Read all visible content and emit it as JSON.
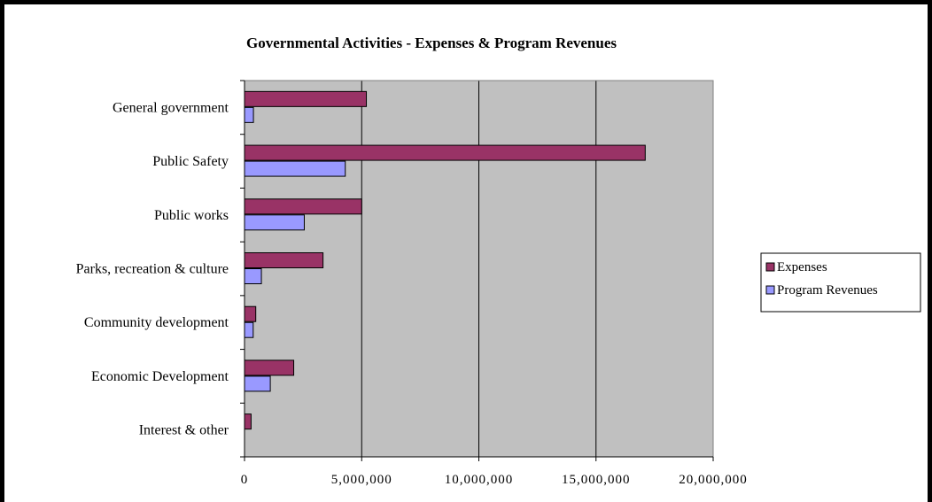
{
  "chart_data": {
    "type": "bar",
    "orientation": "horizontal",
    "title": "Governmental Activities - Expenses & Program Revenues",
    "xlabel": "",
    "ylabel": "",
    "xlim": [
      0,
      20000000
    ],
    "x_ticks": [
      0,
      5000000,
      10000000,
      15000000,
      20000000
    ],
    "x_tick_labels": [
      "0",
      "5,000,000",
      "10,000,000",
      "15,000,000",
      "20,000,000"
    ],
    "categories": [
      "General government",
      "Public Safety",
      "Public works",
      "Parks, recreation & culture",
      "Community development",
      "Economic Development",
      "Interest & other"
    ],
    "series": [
      {
        "name": "Expenses",
        "color": "#993366",
        "values": [
          5200000,
          17100000,
          5000000,
          3350000,
          480000,
          2100000,
          280000
        ]
      },
      {
        "name": "Program Revenues",
        "color": "#9999FF",
        "values": [
          380000,
          4300000,
          2550000,
          720000,
          370000,
          1100000,
          0
        ]
      }
    ],
    "grid": "vertical major gridlines",
    "plot_background": "#C0C0C0",
    "legend_position": "right"
  }
}
